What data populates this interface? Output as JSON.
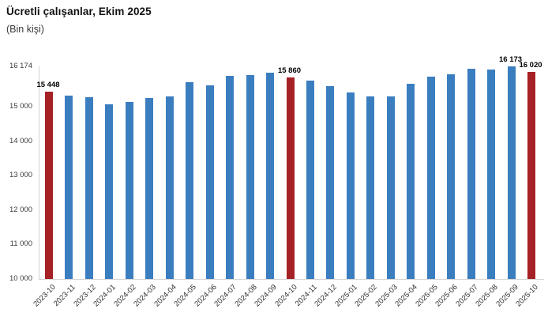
{
  "chart_data": {
    "type": "bar",
    "title": "Ücretli çalışanlar, Ekim 2025",
    "subtitle": "(Bin kişi)",
    "xlabel": "",
    "ylabel": "",
    "ylim": [
      10000,
      16174
    ],
    "grid": false,
    "legend": "none",
    "x": [
      "2023-10",
      "2023-11",
      "2023-12",
      "2024-01",
      "2024-02",
      "2024-03",
      "2024-04",
      "2024-05",
      "2024-06",
      "2024-07",
      "2024-08",
      "2024-09",
      "2024-10",
      "2024-11",
      "2024-12",
      "2025-01",
      "2025-02",
      "2025-03",
      "2025-04",
      "2025-05",
      "2025-06",
      "2025-07",
      "2025-08",
      "2025-09",
      "2025-10"
    ],
    "values": [
      15448,
      15320,
      15275,
      15080,
      15150,
      15250,
      15300,
      15710,
      15630,
      15910,
      15930,
      16000,
      15860,
      15755,
      15600,
      15425,
      15295,
      15310,
      15680,
      15875,
      15945,
      16105,
      16080,
      16173,
      16020
    ],
    "highlight_indices": [
      0,
      12,
      24
    ],
    "point_labels": {
      "0": "15 448",
      "12": "15 860",
      "23": "16 173",
      "24": "16 020"
    },
    "y_ticks": [
      {
        "label": "16 174",
        "value": 16174
      },
      {
        "label": "15 000",
        "value": 15000
      },
      {
        "label": "14 000",
        "value": 14000
      },
      {
        "label": "13 000",
        "value": 13000
      },
      {
        "label": "12 000",
        "value": 12000
      },
      {
        "label": "11 000",
        "value": 11000
      },
      {
        "label": "10 000",
        "value": 10000
      }
    ],
    "colors": {
      "bar": "#3b7ec0",
      "highlight": "#a52126",
      "axis_line": "#d4d4d4",
      "tick_text": "#3c3c3c",
      "data_label_text": "#000000",
      "title_text": "#111111"
    }
  }
}
